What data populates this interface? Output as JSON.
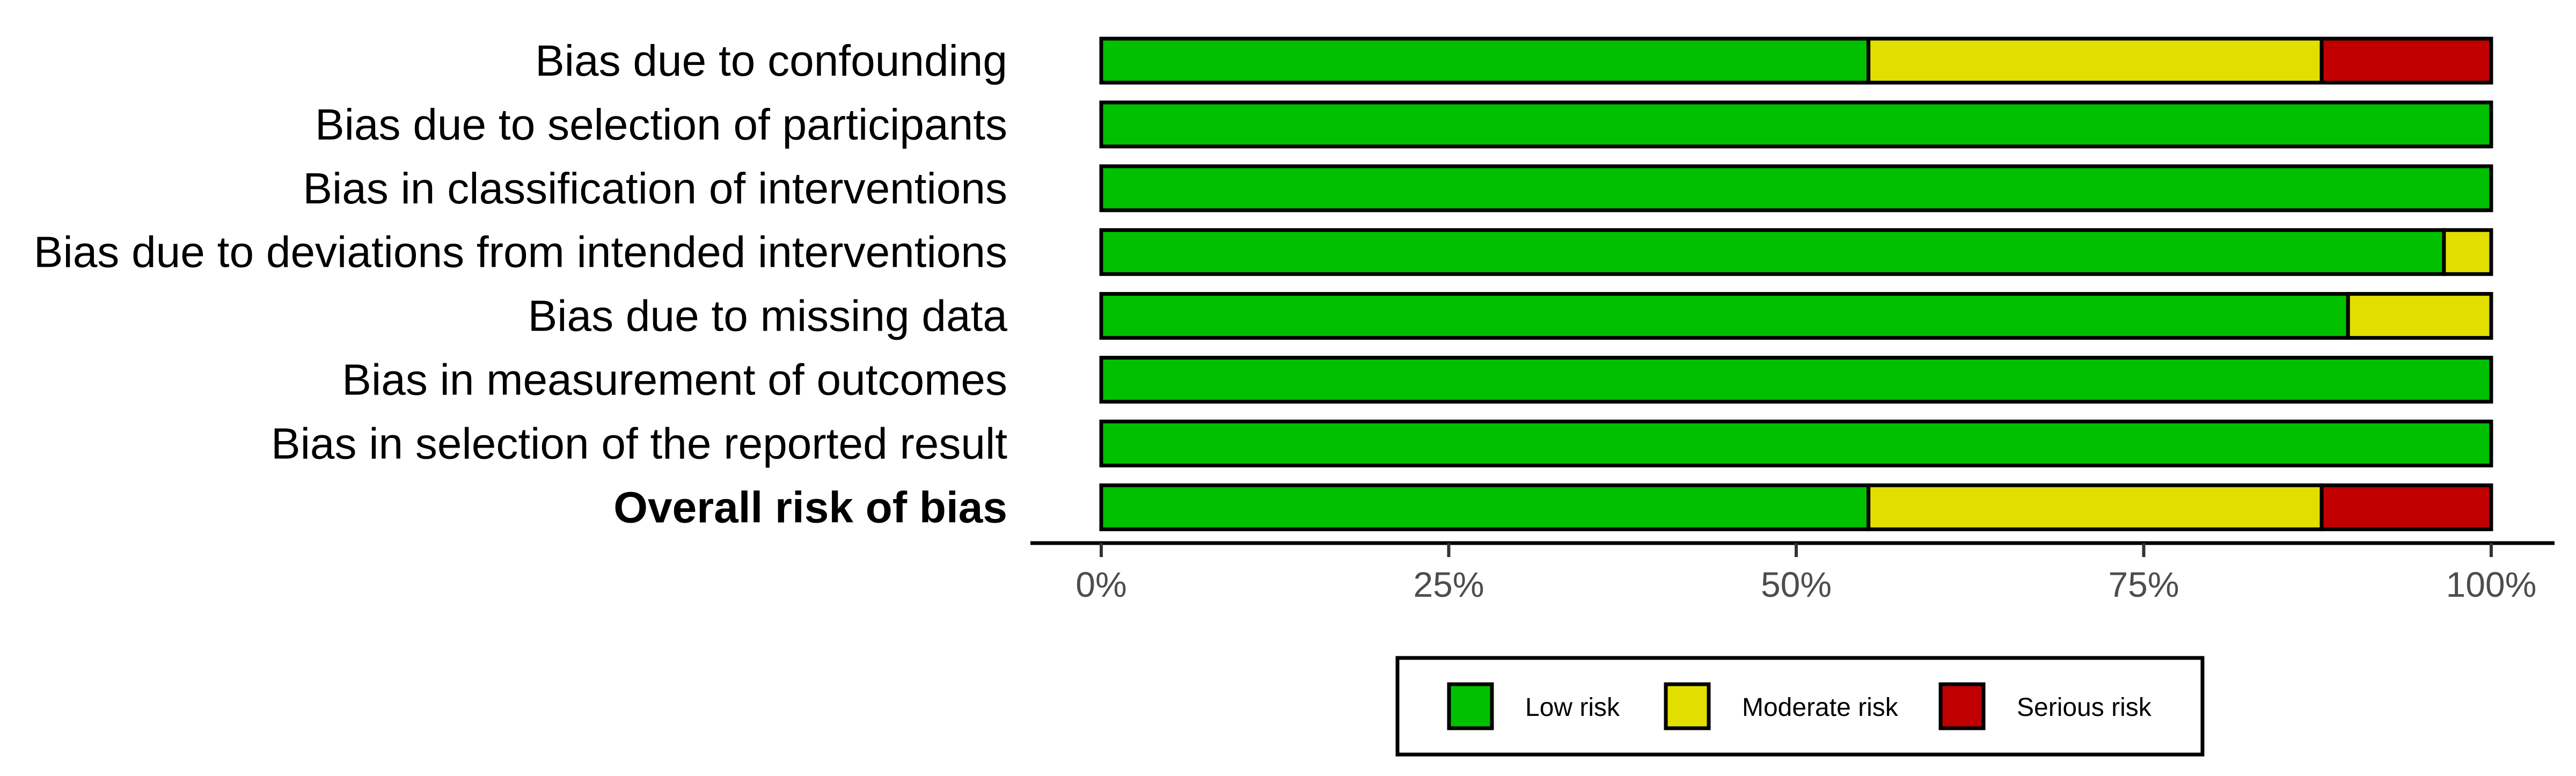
{
  "chart_data": {
    "type": "bar",
    "orientation": "horizontal",
    "stacked": true,
    "categories": [
      "Bias due to confounding",
      "Bias due to selection of participants",
      "Bias in classification of interventions",
      "Bias due to deviations from intended interventions",
      "Bias due to missing data",
      "Bias in measurement of outcomes",
      "Bias in selection of the reported result",
      "Overall risk of bias"
    ],
    "bold_categories": [
      "Overall risk of bias"
    ],
    "series": [
      {
        "name": "Low risk",
        "color": "#00c000",
        "values": [
          55.2,
          100,
          100,
          96.6,
          89.7,
          100,
          100,
          55.2
        ]
      },
      {
        "name": "Moderate risk",
        "color": "#e2df00",
        "values": [
          32.6,
          0,
          0,
          3.4,
          10.3,
          0,
          0,
          32.6
        ]
      },
      {
        "name": "Serious risk",
        "color": "#c00000",
        "values": [
          12.2,
          0,
          0,
          0,
          0,
          0,
          0,
          12.2
        ]
      }
    ],
    "x_ticks": [
      0,
      25,
      50,
      75,
      100
    ],
    "x_tick_labels": [
      "0%",
      "25%",
      "50%",
      "75%",
      "100%"
    ],
    "xlim": [
      0,
      100
    ],
    "grid": false,
    "legend_position": "bottom"
  }
}
